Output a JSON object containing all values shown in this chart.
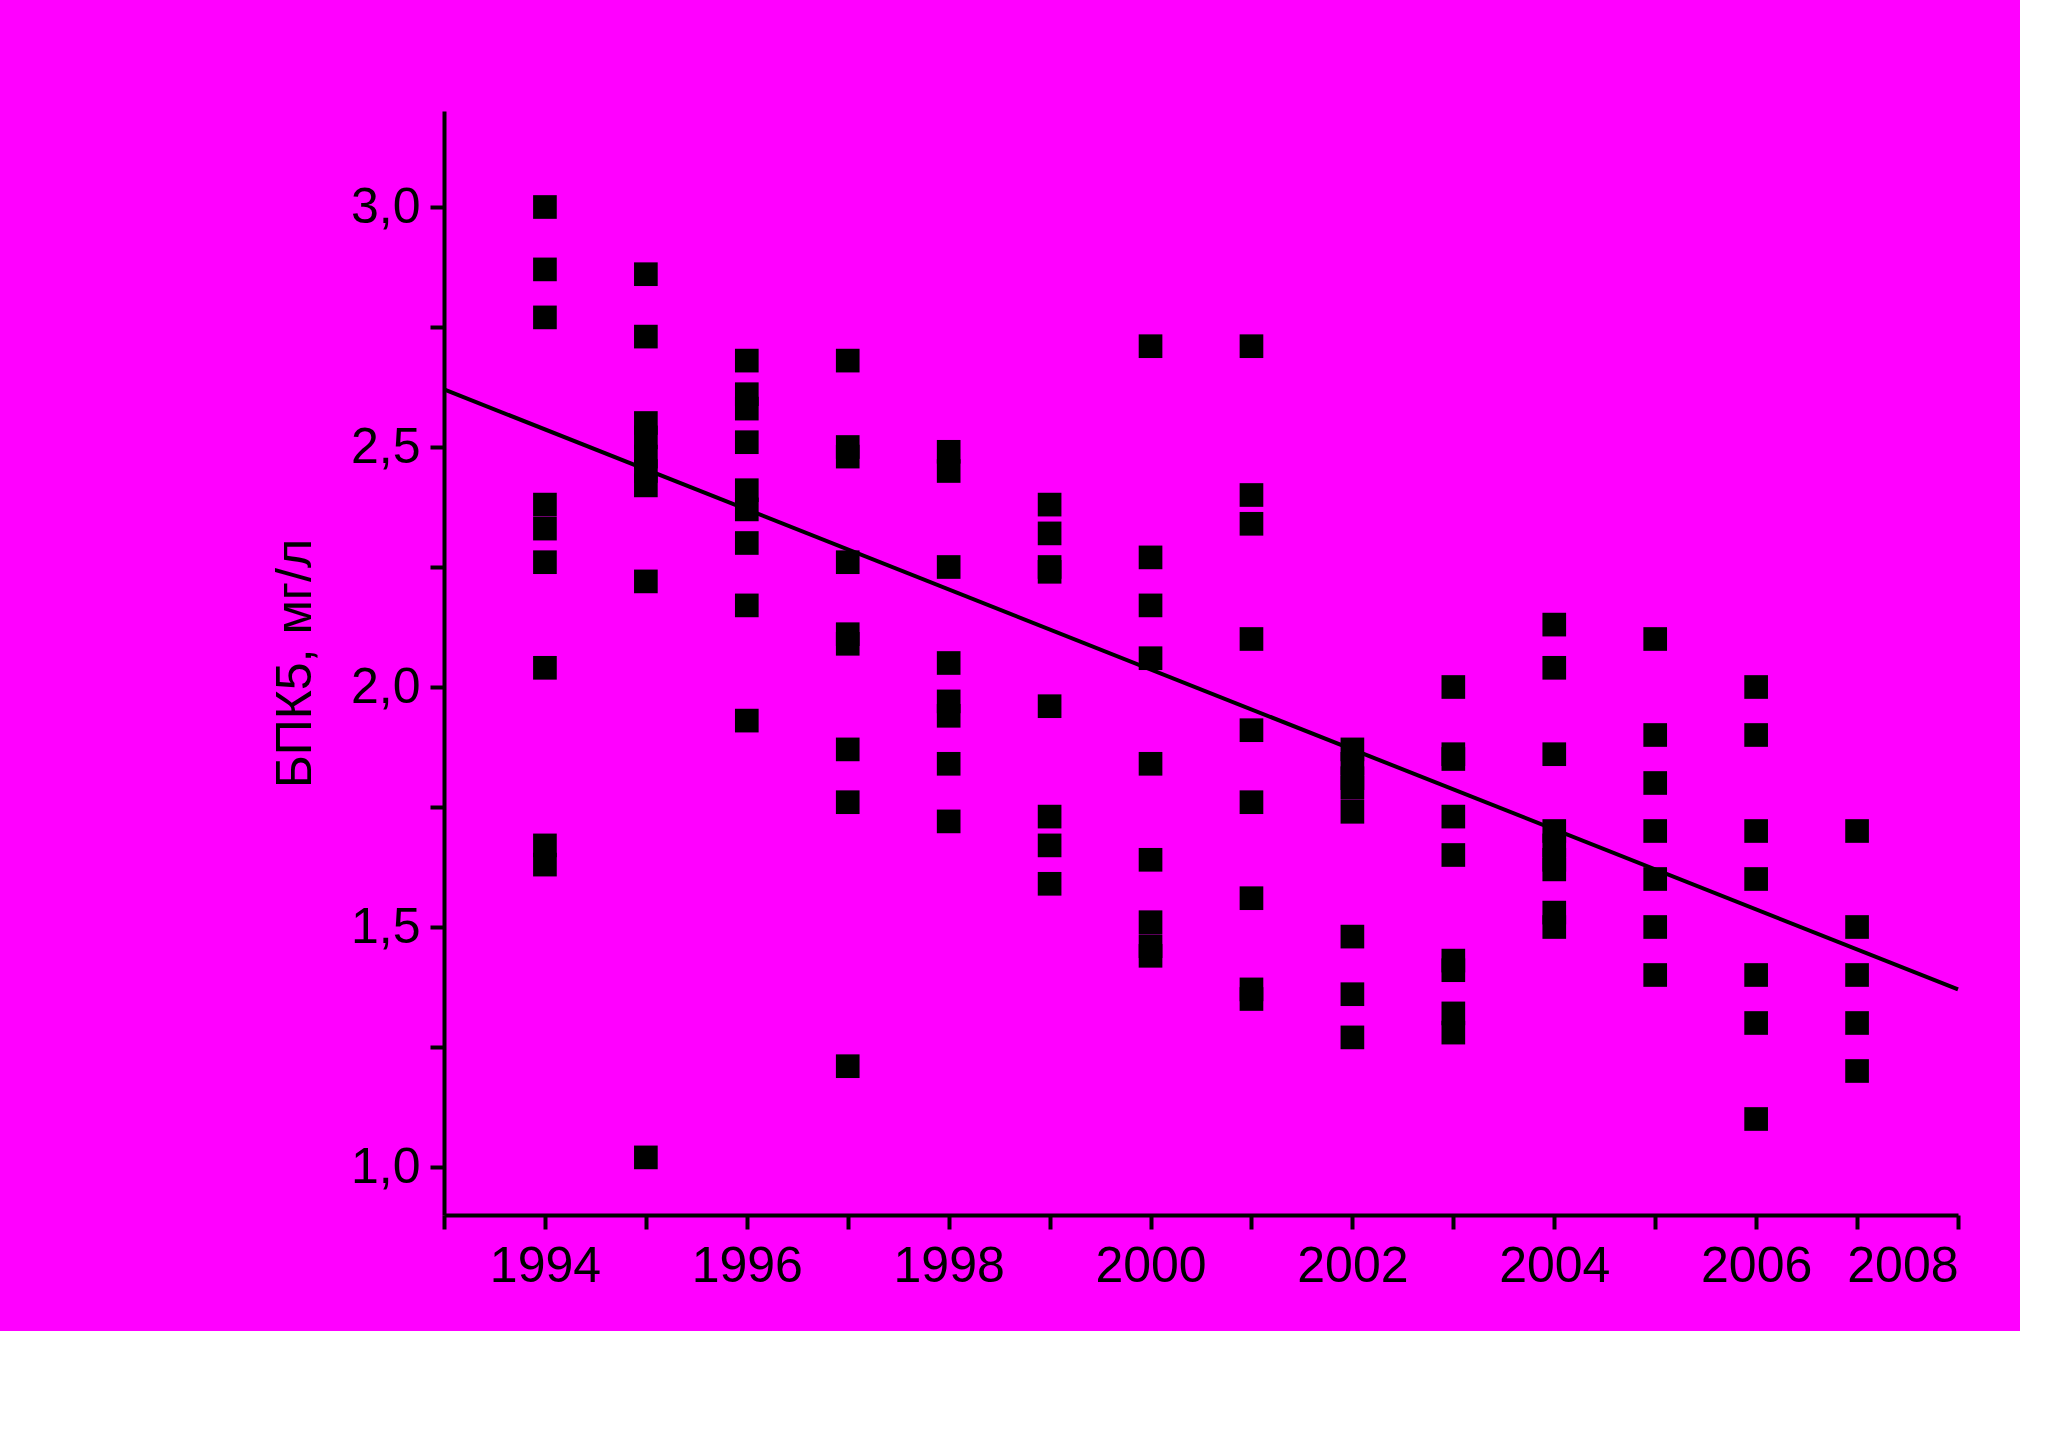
{
  "chart_data": {
    "type": "scatter",
    "ylabel": "БПК5, мг/л",
    "xlim": [
      1993,
      2008
    ],
    "ylim": [
      0.9,
      3.2
    ],
    "xticks": [
      {
        "value": 1993,
        "label": null
      },
      1994,
      {
        "value": 1995,
        "label": null
      },
      1996,
      {
        "value": 1997,
        "label": null
      },
      1998,
      {
        "value": 1999,
        "label": null
      },
      2000,
      {
        "value": 2001,
        "label": null
      },
      2002,
      {
        "value": 2003,
        "label": null
      },
      2004,
      {
        "value": 2005,
        "label": null
      },
      2006,
      {
        "value": 2007,
        "label": null
      },
      2008
    ],
    "yticks": [
      {
        "value": 1.0,
        "label": "1,0"
      },
      {
        "value": 1.25,
        "label": null
      },
      {
        "value": 1.5,
        "label": "1,5"
      },
      {
        "value": 1.75,
        "label": null
      },
      {
        "value": 2.0,
        "label": "2,0"
      },
      {
        "value": 2.25,
        "label": null
      },
      {
        "value": 2.5,
        "label": "2,5"
      },
      {
        "value": 2.75,
        "label": null
      },
      {
        "value": 3.0,
        "label": "3,0"
      }
    ],
    "grid": false,
    "series": [
      {
        "marker": "square",
        "color": "#000000",
        "x": [
          1994,
          1994,
          1994,
          1994,
          1994,
          1994,
          1994,
          1994,
          1994,
          1995,
          1995,
          1995,
          1995,
          1995,
          1995,
          1995,
          1995,
          1995,
          1996,
          1996,
          1996,
          1996,
          1996,
          1996,
          1996,
          1996,
          1996,
          1997,
          1997,
          1997,
          1997,
          1997,
          1997,
          1997,
          1997,
          1997,
          1998,
          1998,
          1998,
          1998,
          1998,
          1998,
          1998,
          1998,
          1999,
          1999,
          1999,
          1999,
          1999,
          1999,
          1999,
          1999,
          2000,
          2000,
          2000,
          2000,
          2000,
          2000,
          2000,
          2000,
          2000,
          2001,
          2001,
          2001,
          2001,
          2001,
          2001,
          2001,
          2001,
          2001,
          2002,
          2002,
          2002,
          2002,
          2002,
          2002,
          2002,
          2002,
          2003,
          2003,
          2003,
          2003,
          2003,
          2003,
          2003,
          2003,
          2003,
          2004,
          2004,
          2004,
          2004,
          2004,
          2004,
          2004,
          2004,
          2004,
          2005,
          2005,
          2005,
          2005,
          2005,
          2005,
          2005,
          2006,
          2006,
          2006,
          2006,
          2006,
          2006,
          2006,
          2007,
          2007,
          2007,
          2007,
          2007
        ],
        "values": [
          3.0,
          2.87,
          2.77,
          2.38,
          2.33,
          2.26,
          2.04,
          1.67,
          1.63,
          2.86,
          2.73,
          2.55,
          2.52,
          2.48,
          2.45,
          2.42,
          2.22,
          1.02,
          2.68,
          2.61,
          2.58,
          2.51,
          2.41,
          2.37,
          2.3,
          2.17,
          1.93,
          2.68,
          2.5,
          2.48,
          2.26,
          2.11,
          2.09,
          1.87,
          1.76,
          1.21,
          2.49,
          2.45,
          2.25,
          2.05,
          1.97,
          1.94,
          1.84,
          1.72,
          2.38,
          2.32,
          2.25,
          2.24,
          1.96,
          1.73,
          1.67,
          1.59,
          2.71,
          2.27,
          2.17,
          2.06,
          1.84,
          1.64,
          1.51,
          1.46,
          1.44,
          2.71,
          2.4,
          2.34,
          2.1,
          1.91,
          1.76,
          1.56,
          1.37,
          1.35,
          1.87,
          1.84,
          1.81,
          1.79,
          1.74,
          1.48,
          1.36,
          1.27,
          2.0,
          1.86,
          1.85,
          1.73,
          1.65,
          1.43,
          1.41,
          1.32,
          1.28,
          2.13,
          2.04,
          1.86,
          1.7,
          1.67,
          1.64,
          1.62,
          1.53,
          1.5,
          2.1,
          1.9,
          1.8,
          1.7,
          1.6,
          1.5,
          1.4,
          2.0,
          1.9,
          1.7,
          1.6,
          1.4,
          1.3,
          1.1,
          1.7,
          1.5,
          1.4,
          1.3,
          1.2
        ]
      },
      {
        "type": "line",
        "color": "#000000",
        "x": [
          1993,
          2008
        ],
        "values": [
          2.62,
          1.37
        ]
      }
    ]
  }
}
